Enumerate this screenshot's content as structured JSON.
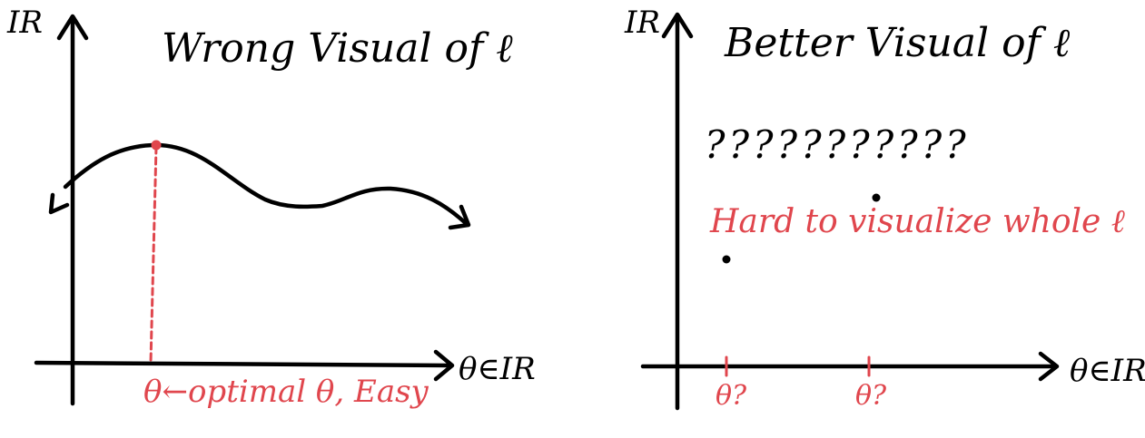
{
  "colors": {
    "ink": "#000000",
    "accent": "#e0464d"
  },
  "left_panel": {
    "title": "Wrong Visual of ℓ",
    "y_axis_label": "IR",
    "x_axis_label": "θ∈IR",
    "annotation": "θ←optimal θ, Easy"
  },
  "right_panel": {
    "title": "Better Visual of ℓ",
    "y_axis_label": "IR",
    "x_axis_label": "θ∈IR",
    "question_marks": "???????????",
    "annotation": "Hard to visualize whole ℓ",
    "tick_label_1": "θ?",
    "tick_label_2": "θ?"
  }
}
